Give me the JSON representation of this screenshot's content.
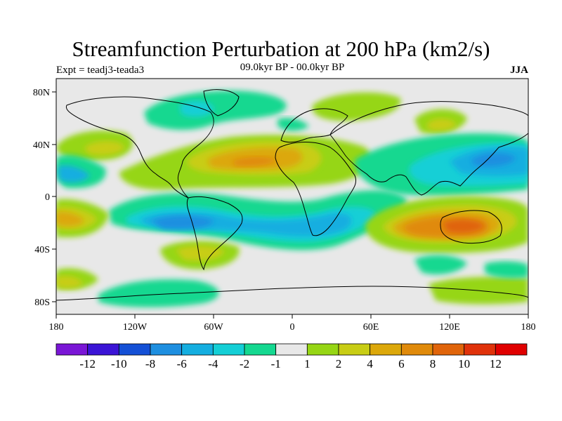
{
  "title": "Streamfunction Perturbation at 200 hPa (km2/s)",
  "left_label": "Expt = teadj3-teada3",
  "center_label": "09.0kyr BP - 00.0kyr BP",
  "right_label": "JJA",
  "axes": {
    "x_ticks": [
      "180",
      "120W",
      "60W",
      "0",
      "60E",
      "120E",
      "180"
    ],
    "y_ticks": [
      "80N",
      "40N",
      "0",
      "40S",
      "80S"
    ]
  },
  "colorbar": {
    "colors": [
      "#7a16d6",
      "#3b14d6",
      "#1450d6",
      "#1e8fe0",
      "#14aee0",
      "#14cfd6",
      "#14d890",
      "#e8e8e8",
      "#96d614",
      "#c8cd14",
      "#dca80a",
      "#e08a0a",
      "#e0640a",
      "#e0320a",
      "#e00000"
    ],
    "labels": [
      "-12",
      "-10",
      "-8",
      "-6",
      "-4",
      "-2",
      "-1",
      "1",
      "2",
      "4",
      "6",
      "8",
      "10",
      "12"
    ]
  }
}
